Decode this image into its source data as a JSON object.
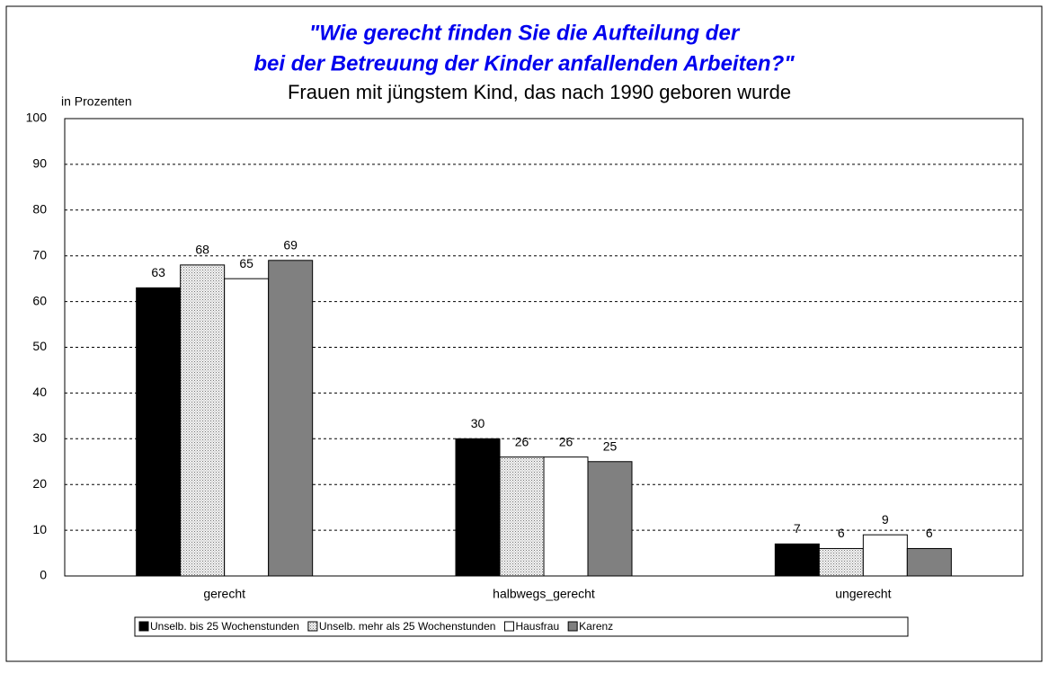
{
  "chart_data": {
    "type": "bar",
    "title": [
      "\"Wie gerecht finden Sie die Aufteilung der",
      "bei der Betreuung der Kinder anfallenden Arbeiten?\""
    ],
    "subtitle": "Frauen mit jüngstem Kind, das nach 1990 geboren wurde",
    "ylabel": "in Prozenten",
    "categories": [
      "gerecht",
      "halbwegs_gerecht",
      "ungerecht"
    ],
    "series": [
      {
        "name": "Unselb. bis 25 Wochenstunden",
        "color": "#000000",
        "values": [
          63,
          30,
          7
        ]
      },
      {
        "name": "Unselb. mehr als 25 Wochenstunden",
        "color": "#d9d9d9",
        "pattern": "dotted",
        "values": [
          68,
          26,
          6
        ]
      },
      {
        "name": "Hausfrau",
        "color": "#ffffff",
        "values": [
          65,
          26,
          9
        ]
      },
      {
        "name": "Karenz",
        "color": "#808080",
        "values": [
          69,
          25,
          6
        ]
      }
    ],
    "ylim": [
      0,
      100
    ],
    "yticks": [
      0,
      10,
      20,
      30,
      40,
      50,
      60,
      70,
      80,
      90,
      100
    ],
    "grid": true,
    "legend": "bottom"
  }
}
